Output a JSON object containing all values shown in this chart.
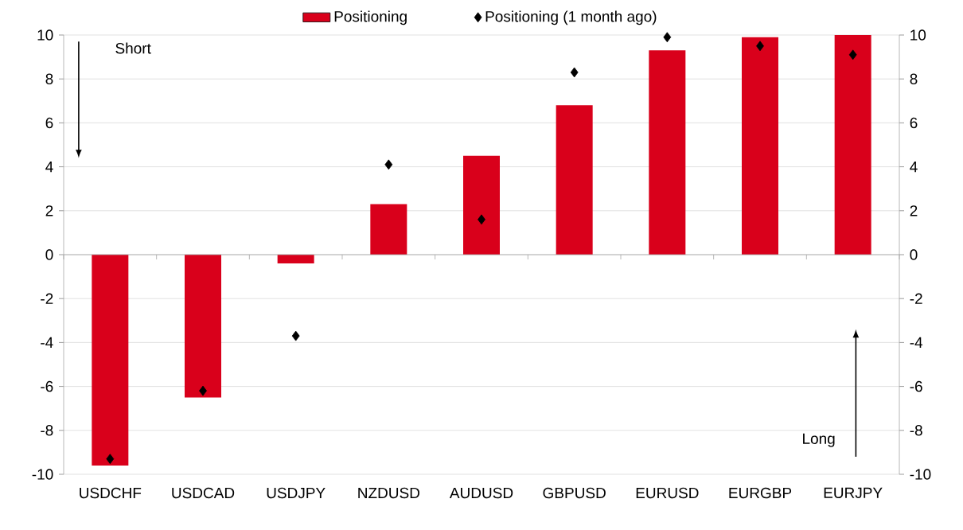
{
  "chart_data": {
    "type": "bar",
    "categories": [
      "USDCHF",
      "USDCAD",
      "USDJPY",
      "NZDUSD",
      "AUDUSD",
      "GBPUSD",
      "EURUSD",
      "EURGBP",
      "EURJPY"
    ],
    "series": [
      {
        "name": "Positioning",
        "color": "#d9001b",
        "values": [
          -9.6,
          -6.5,
          -0.4,
          2.3,
          4.5,
          6.8,
          9.3,
          9.9,
          10
        ]
      },
      {
        "name": "Positioning (1 month ago)",
        "type": "scatter",
        "color": "#000000",
        "values": [
          -9.3,
          -6.2,
          -3.7,
          4.1,
          1.6,
          8.3,
          9.9,
          9.5,
          9.1
        ]
      }
    ],
    "ylim": [
      -10,
      10
    ],
    "yticks": [
      -10,
      -8,
      -6,
      -4,
      -2,
      0,
      2,
      4,
      6,
      8,
      10
    ],
    "y2lim": [
      -10,
      10
    ],
    "y2ticks": [
      -10,
      -8,
      -6,
      -4,
      -2,
      0,
      2,
      4,
      6,
      8,
      10
    ],
    "annotations": [
      "Short",
      "Long"
    ],
    "grid": "y",
    "legend": "top",
    "marker": "diamond"
  }
}
